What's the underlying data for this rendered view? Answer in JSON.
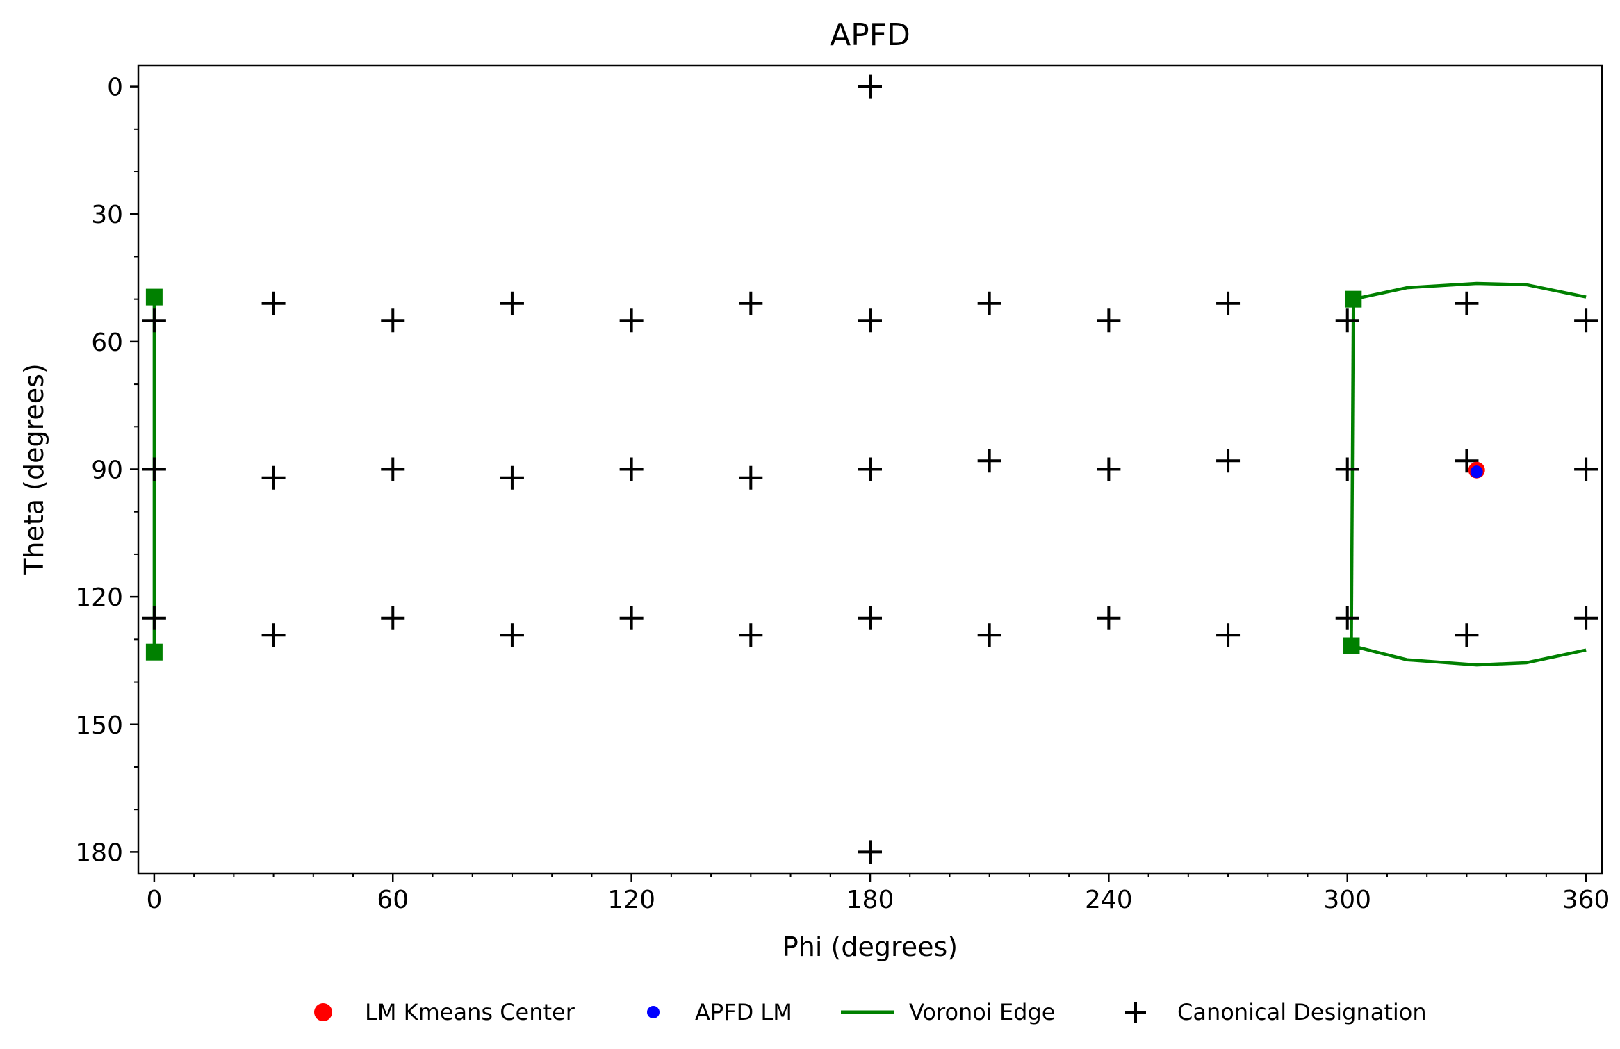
{
  "chart_data": {
    "type": "scatter",
    "title": "APFD",
    "xlabel": "Phi (degrees)",
    "ylabel": "Theta (degrees)",
    "xlim": [
      -4,
      364
    ],
    "ylim": [
      185,
      -5
    ],
    "y_inverted": true,
    "xticks": [
      0,
      60,
      120,
      180,
      240,
      300,
      360
    ],
    "xtick_labels": [
      "0",
      "60",
      "120",
      "180",
      "240",
      "300",
      "360"
    ],
    "yticks": [
      0,
      30,
      60,
      90,
      120,
      150,
      180
    ],
    "ytick_labels": [
      "0",
      "30",
      "60",
      "90",
      "120",
      "150",
      "180"
    ],
    "grid": false,
    "legend_position": "bottom-center",
    "legend": [
      "LM Kmeans Center",
      "APFD LM",
      "Voronoi Edge",
      "Canonical Designation"
    ],
    "colors": {
      "kmeans": "#ff0000",
      "apfd": "#0000ff",
      "voronoi": "#008000",
      "canonical": "#000000"
    },
    "series": [
      {
        "name": "Canonical Designation",
        "marker": "plus",
        "points": [
          [
            180,
            0
          ],
          [
            0,
            55
          ],
          [
            30,
            51
          ],
          [
            60,
            55
          ],
          [
            90,
            51
          ],
          [
            120,
            55
          ],
          [
            150,
            51
          ],
          [
            180,
            55
          ],
          [
            210,
            51
          ],
          [
            240,
            55
          ],
          [
            270,
            51
          ],
          [
            300,
            55
          ],
          [
            330,
            51
          ],
          [
            360,
            55
          ],
          [
            0,
            90
          ],
          [
            30,
            92
          ],
          [
            60,
            90
          ],
          [
            90,
            92
          ],
          [
            120,
            90
          ],
          [
            150,
            92
          ],
          [
            180,
            90
          ],
          [
            210,
            88
          ],
          [
            240,
            90
          ],
          [
            270,
            88
          ],
          [
            300,
            90
          ],
          [
            330,
            88
          ],
          [
            360,
            90
          ],
          [
            0,
            125
          ],
          [
            30,
            129
          ],
          [
            60,
            125
          ],
          [
            90,
            129
          ],
          [
            120,
            125
          ],
          [
            150,
            129
          ],
          [
            180,
            125
          ],
          [
            210,
            129
          ],
          [
            240,
            125
          ],
          [
            270,
            129
          ],
          [
            300,
            125
          ],
          [
            330,
            129
          ],
          [
            360,
            125
          ],
          [
            180,
            180
          ]
        ]
      },
      {
        "name": "LM Kmeans Center",
        "marker": "circle",
        "points": [
          [
            332.5,
            90.2
          ]
        ]
      },
      {
        "name": "APFD LM",
        "marker": "circle",
        "points": [
          [
            332.5,
            90.6
          ]
        ]
      },
      {
        "name": "Voronoi Edge",
        "marker": "line",
        "lines": [
          {
            "points": [
              [
                0,
                49.5
              ],
              [
                0,
                133
              ]
            ],
            "endpoint_markers": true
          },
          {
            "points": [
              [
                301.5,
                50
              ],
              [
                301,
                131.5
              ]
            ],
            "endpoint_markers": true
          },
          {
            "points": [
              [
                301.5,
                50
              ],
              [
                315,
                47.3
              ],
              [
                332.5,
                46.3
              ],
              [
                345,
                46.6
              ],
              [
                360,
                49.5
              ]
            ],
            "endpoint_markers": false
          },
          {
            "points": [
              [
                301,
                131.5
              ],
              [
                315,
                134.8
              ],
              [
                332.5,
                136
              ],
              [
                345,
                135.5
              ],
              [
                360,
                132.5
              ]
            ],
            "endpoint_markers": false
          }
        ]
      }
    ]
  }
}
